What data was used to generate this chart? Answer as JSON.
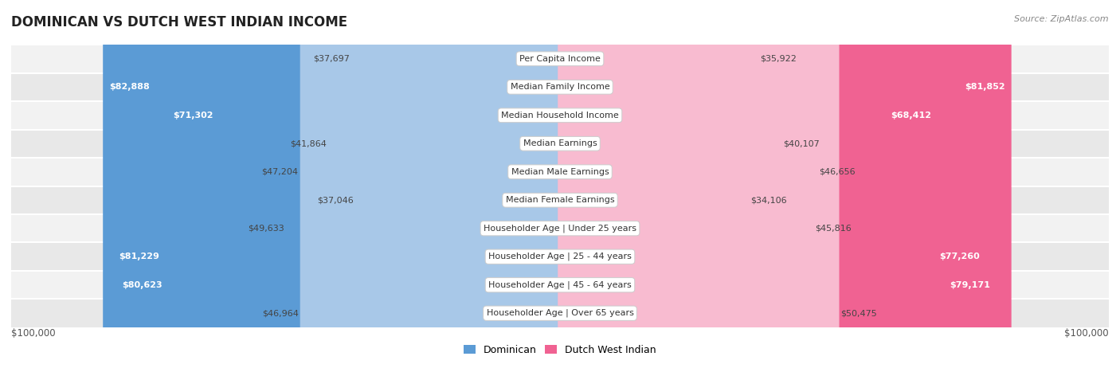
{
  "title": "DOMINICAN VS DUTCH WEST INDIAN INCOME",
  "source": "Source: ZipAtlas.com",
  "categories": [
    "Per Capita Income",
    "Median Family Income",
    "Median Household Income",
    "Median Earnings",
    "Median Male Earnings",
    "Median Female Earnings",
    "Householder Age | Under 25 years",
    "Householder Age | 25 - 44 years",
    "Householder Age | 45 - 64 years",
    "Householder Age | Over 65 years"
  ],
  "dominican_values": [
    37697,
    82888,
    71302,
    41864,
    47204,
    37046,
    49633,
    81229,
    80623,
    46964
  ],
  "dutch_values": [
    35922,
    81852,
    68412,
    40107,
    46656,
    34106,
    45816,
    77260,
    79171,
    50475
  ],
  "dominican_labels": [
    "$37,697",
    "$82,888",
    "$71,302",
    "$41,864",
    "$47,204",
    "$37,046",
    "$49,633",
    "$81,229",
    "$80,623",
    "$46,964"
  ],
  "dutch_labels": [
    "$35,922",
    "$81,852",
    "$68,412",
    "$40,107",
    "$46,656",
    "$34,106",
    "$45,816",
    "$77,260",
    "$79,171",
    "$50,475"
  ],
  "max_value": 100000,
  "dominican_bar_color_dark": "#5b9bd5",
  "dominican_bar_color_light": "#a8c8e8",
  "dutch_bar_color_dark": "#f06292",
  "dutch_bar_color_light": "#f8bbd0",
  "dominican_legend_color": "#5b9bd5",
  "dutch_legend_color": "#f06292",
  "background_color": "#ffffff",
  "row_bg_even": "#f2f2f2",
  "row_bg_odd": "#e8e8e8",
  "label_dark_threshold": 65000,
  "xlabel_left": "$100,000",
  "xlabel_right": "$100,000",
  "legend_dominican": "Dominican",
  "legend_dutch": "Dutch West Indian"
}
